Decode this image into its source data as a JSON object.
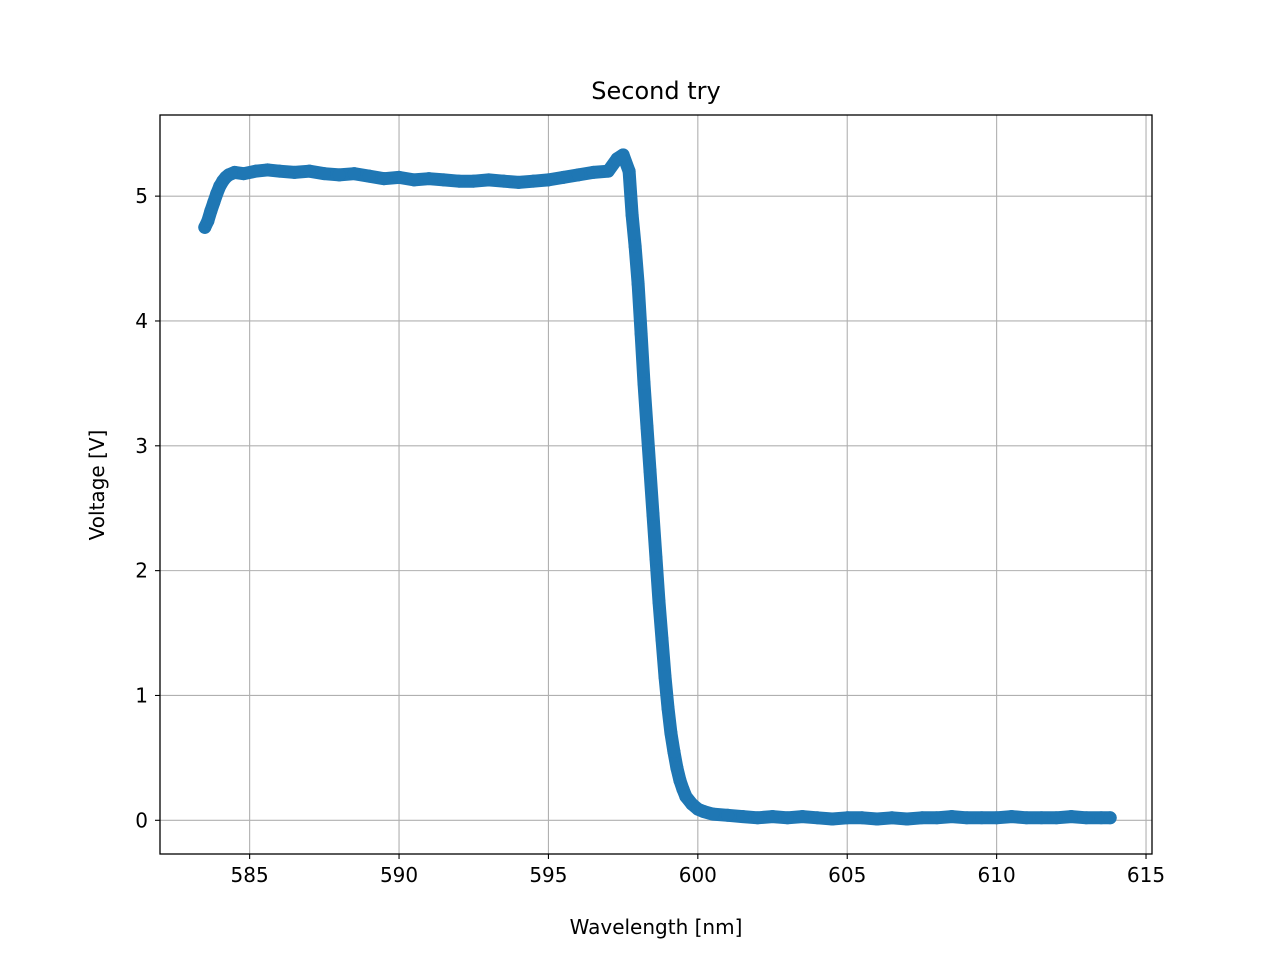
{
  "chart_data": {
    "type": "scatter",
    "title": "Second try",
    "xlabel": "Wavelength [nm]",
    "ylabel": "Voltage [V]",
    "xlim": [
      582.0,
      615.2
    ],
    "ylim": [
      -0.27,
      5.65
    ],
    "xticks": [
      585,
      590,
      595,
      600,
      605,
      610,
      615
    ],
    "yticks": [
      0,
      1,
      2,
      3,
      4,
      5
    ],
    "grid": true,
    "marker_color": "#1f77b4",
    "series": [
      {
        "x": [
          583.5,
          583.6,
          583.7,
          583.8,
          583.9,
          584.0,
          584.1,
          584.2,
          584.3,
          584.5,
          584.8,
          585.2,
          585.6,
          586.0,
          586.5,
          587.0,
          587.5,
          588.0,
          588.5,
          589.0,
          589.5,
          590.0,
          590.5,
          591.0,
          591.5,
          592.0,
          592.5,
          593.0,
          593.5,
          594.0,
          594.5,
          595.0,
          595.5,
          596.0,
          596.5,
          597.0,
          597.3,
          597.5,
          597.7,
          597.8,
          597.9,
          598.0,
          598.1,
          598.2,
          598.3,
          598.4,
          598.5,
          598.6,
          598.7,
          598.8,
          598.9,
          599.0,
          599.1,
          599.2,
          599.3,
          599.4,
          599.5,
          599.6,
          599.8,
          600.0,
          600.2,
          600.5,
          601.0,
          601.5,
          602.0,
          602.5,
          603.0,
          603.5,
          604.0,
          604.5,
          605.0,
          605.5,
          606.0,
          606.5,
          607.0,
          607.5,
          608.0,
          608.5,
          609.0,
          609.5,
          610.0,
          610.5,
          611.0,
          611.5,
          612.0,
          612.5,
          613.0,
          613.5,
          613.8
        ],
        "y": [
          4.75,
          4.8,
          4.88,
          4.95,
          5.02,
          5.08,
          5.12,
          5.15,
          5.17,
          5.19,
          5.18,
          5.2,
          5.21,
          5.2,
          5.19,
          5.2,
          5.18,
          5.17,
          5.18,
          5.16,
          5.14,
          5.15,
          5.13,
          5.14,
          5.13,
          5.12,
          5.12,
          5.13,
          5.12,
          5.11,
          5.12,
          5.13,
          5.15,
          5.17,
          5.19,
          5.2,
          5.3,
          5.33,
          5.2,
          4.85,
          4.6,
          4.3,
          3.9,
          3.5,
          3.15,
          2.8,
          2.45,
          2.1,
          1.75,
          1.45,
          1.15,
          0.9,
          0.7,
          0.55,
          0.42,
          0.32,
          0.25,
          0.19,
          0.13,
          0.09,
          0.07,
          0.05,
          0.04,
          0.03,
          0.02,
          0.03,
          0.02,
          0.03,
          0.02,
          0.01,
          0.02,
          0.02,
          0.01,
          0.02,
          0.01,
          0.02,
          0.02,
          0.03,
          0.02,
          0.02,
          0.02,
          0.03,
          0.02,
          0.02,
          0.02,
          0.03,
          0.02,
          0.02,
          0.02
        ]
      }
    ]
  }
}
